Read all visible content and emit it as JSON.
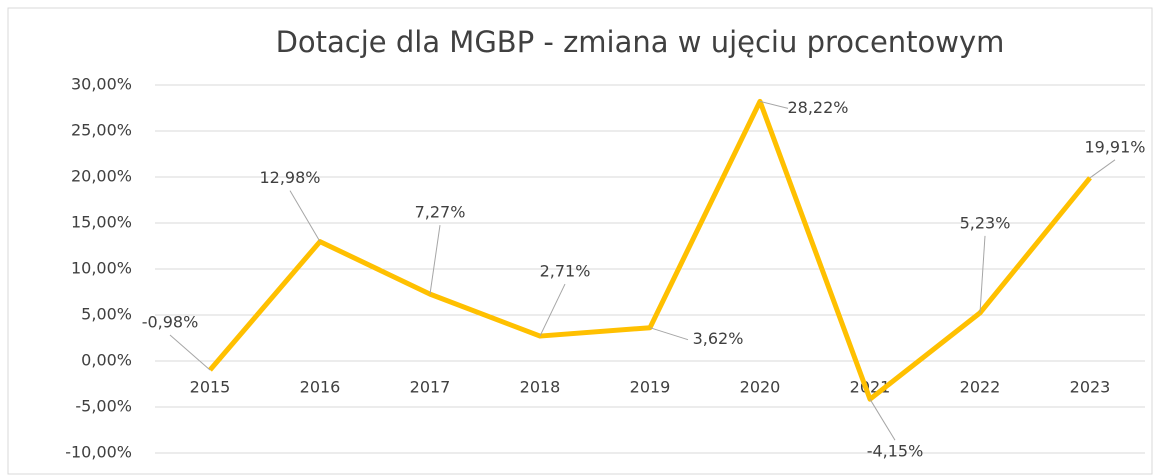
{
  "chart_data": {
    "type": "line",
    "title": "Dotacje dla MGBP - zmiana w ujęciu procentowym",
    "categories": [
      "2015",
      "2016",
      "2017",
      "2018",
      "2019",
      "2020",
      "2021",
      "2022",
      "2023"
    ],
    "series": [
      {
        "name": "Dotacje dla MGBP",
        "color": "#ffc000",
        "values": [
          -0.98,
          12.98,
          7.27,
          2.71,
          3.62,
          28.22,
          -4.15,
          5.23,
          19.91
        ],
        "value_labels": [
          "-0,98%",
          "12,98%",
          "7,27%",
          "2,71%",
          "3,62%",
          "28,22%",
          "-4,15%",
          "5,23%",
          "19,91%"
        ]
      }
    ],
    "ylim": [
      -10,
      30
    ],
    "yticks": [
      {
        "value": -10,
        "label": "-10,00%"
      },
      {
        "value": -5,
        "label": "-5,00%"
      },
      {
        "value": 0,
        "label": "0,00%"
      },
      {
        "value": 5,
        "label": "5,00%"
      },
      {
        "value": 10,
        "label": "10,00%"
      },
      {
        "value": 15,
        "label": "15,00%"
      },
      {
        "value": 20,
        "label": "20,00%"
      },
      {
        "value": 25,
        "label": "25,00%"
      },
      {
        "value": 30,
        "label": "30,00%"
      }
    ],
    "grid": true
  }
}
